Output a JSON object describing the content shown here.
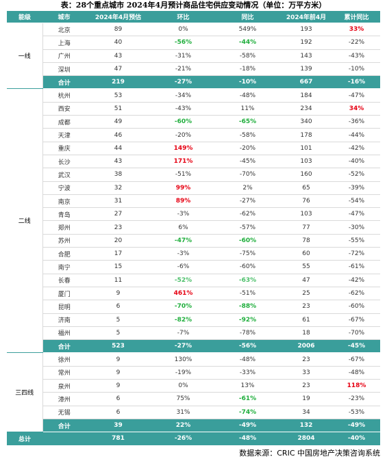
{
  "title": "表：28个重点城市 2024年4月预计商品住宅供应变动情况（单位：万平方米）",
  "table": {
    "header": [
      "能级",
      "城市",
      "2024年4月预估",
      "环比",
      "同比",
      "2024年前4月",
      "累计同比"
    ],
    "groups": [
      {
        "level": "一线",
        "rows": [
          [
            "北京",
            "89",
            "0%",
            "549%",
            "193",
            {
              "text": "33%",
              "color": "#e60012"
            }
          ],
          [
            "上海",
            "40",
            {
              "text": "-56%",
              "color": "#1fae3c"
            },
            {
              "text": "-44%",
              "color": "#1fae3c"
            },
            "192",
            "-22%"
          ],
          [
            "广州",
            "43",
            "-31%",
            "-58%",
            "143",
            "-43%"
          ],
          [
            "深圳",
            "47",
            "-21%",
            "-18%",
            "139",
            "-10%"
          ]
        ],
        "subtotal": [
          "合计",
          "219",
          "-27%",
          "-10%",
          "667",
          "-16%"
        ]
      },
      {
        "level": "二线",
        "rows": [
          [
            "杭州",
            "53",
            "-34%",
            "-48%",
            "184",
            "-47%"
          ],
          [
            "西安",
            "51",
            "-43%",
            "11%",
            "234",
            {
              "text": "34%",
              "color": "#e60012"
            }
          ],
          [
            "成都",
            "49",
            {
              "text": "-60%",
              "color": "#1fae3c"
            },
            {
              "text": "-65%",
              "color": "#1fae3c"
            },
            "340",
            "-36%"
          ],
          [
            "天津",
            "46",
            "-20%",
            "-58%",
            "178",
            "-44%"
          ],
          [
            "重庆",
            "44",
            {
              "text": "149%",
              "color": "#e60012"
            },
            "-20%",
            "101",
            "-42%"
          ],
          [
            "长沙",
            "43",
            {
              "text": "171%",
              "color": "#e60012"
            },
            "-45%",
            "103",
            "-40%"
          ],
          [
            "武汉",
            "38",
            "-51%",
            "-70%",
            "160",
            "-52%"
          ],
          [
            "宁波",
            "32",
            {
              "text": "99%",
              "color": "#e60012"
            },
            "2%",
            "65",
            "-39%"
          ],
          [
            "南京",
            "31",
            {
              "text": "89%",
              "color": "#e60012"
            },
            "-27%",
            "76",
            "-54%"
          ],
          [
            "青岛",
            "27",
            "-3%",
            "-62%",
            "103",
            "-47%"
          ],
          [
            "郑州",
            "23",
            "6%",
            "-57%",
            "77",
            "-30%"
          ],
          [
            "苏州",
            "20",
            {
              "text": "-47%",
              "color": "#1fae3c"
            },
            {
              "text": "-60%",
              "color": "#1fae3c"
            },
            "78",
            "-55%"
          ],
          [
            "合肥",
            "17",
            "-3%",
            "-75%",
            "60",
            "-72%"
          ],
          [
            "南宁",
            "15",
            "-6%",
            "-60%",
            "55",
            "-61%"
          ],
          [
            "长春",
            "11",
            {
              "text": "-52%",
              "color": "#4cbf6a"
            },
            {
              "text": "-63%",
              "color": "#4cbf6a"
            },
            "47",
            "-42%"
          ],
          [
            "厦门",
            "9",
            {
              "text": "461%",
              "color": "#e60012"
            },
            "-51%",
            "25",
            "-62%"
          ],
          [
            "昆明",
            "6",
            {
              "text": "-70%",
              "color": "#1fae3c"
            },
            {
              "text": "-88%",
              "color": "#1fae3c"
            },
            "23",
            "-60%"
          ],
          [
            "济南",
            "5",
            {
              "text": "-82%",
              "color": "#1fae3c"
            },
            {
              "text": "-92%",
              "color": "#1fae3c"
            },
            "61",
            "-67%"
          ],
          [
            "福州",
            "5",
            "-7%",
            "-78%",
            "18",
            "-70%"
          ]
        ],
        "subtotal": [
          "合计",
          "523",
          "-27%",
          "-56%",
          "2006",
          "-45%"
        ]
      },
      {
        "level": "三四线",
        "rows": [
          [
            "徐州",
            "9",
            "130%",
            "-48%",
            "23",
            "-67%"
          ],
          [
            "常州",
            "9",
            "-19%",
            "-33%",
            "33",
            "-48%"
          ],
          [
            "泉州",
            "9",
            "0%",
            "13%",
            "23",
            {
              "text": "118%",
              "color": "#e60012"
            }
          ],
          [
            "漳州",
            "6",
            "75%",
            {
              "text": "-61%",
              "color": "#1fae3c"
            },
            "19",
            "-23%"
          ],
          [
            "无锡",
            "6",
            "31%",
            {
              "text": "-74%",
              "color": "#1fae3c"
            },
            "34",
            "-53%"
          ]
        ],
        "subtotal": [
          "合计",
          "39",
          "22%",
          "-49%",
          "132",
          "-49%"
        ]
      }
    ],
    "total": [
      "总计",
      "781",
      "-26%",
      "-48%",
      "2804",
      "-40%"
    ]
  },
  "source": "数据来源：CRIC 中国房地产决策咨询系统"
}
